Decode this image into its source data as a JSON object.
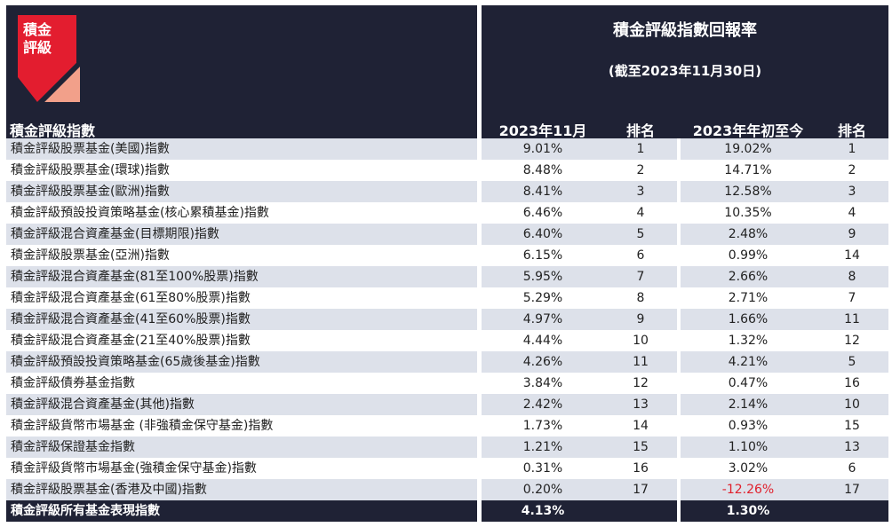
{
  "logo": {
    "text_line1": "積金",
    "text_line2": "評級",
    "colors": {
      "red": "#e31d2f",
      "salmon": "#f2a08a",
      "navy": "#1f2235"
    }
  },
  "header": {
    "title": "積金評級指數回報率",
    "subtitle": "(截至2023年11月30日)"
  },
  "columns": {
    "name": "積金評級指數",
    "month": "2023年11月",
    "rank1": "排名",
    "ytd": "2023年年初至今",
    "rank2": "排名"
  },
  "rows": [
    {
      "name": "積金評級股票基金(美國)指數",
      "month": "9.01%",
      "rank1": "1",
      "ytd": "19.02%",
      "rank2": "1"
    },
    {
      "name": "積金評級股票基金(環球)指數",
      "month": "8.48%",
      "rank1": "2",
      "ytd": "14.71%",
      "rank2": "2"
    },
    {
      "name": "積金評級股票基金(歐洲)指數",
      "month": "8.41%",
      "rank1": "3",
      "ytd": "12.58%",
      "rank2": "3"
    },
    {
      "name": "積金評級預設投資策略基金(核心累積基金)指數",
      "month": "6.46%",
      "rank1": "4",
      "ytd": "10.35%",
      "rank2": "4"
    },
    {
      "name": "積金評級混合資產基金(目標期限)指數",
      "month": "6.40%",
      "rank1": "5",
      "ytd": "2.48%",
      "rank2": "9"
    },
    {
      "name": "積金評級股票基金(亞洲)指數",
      "month": "6.15%",
      "rank1": "6",
      "ytd": "0.99%",
      "rank2": "14"
    },
    {
      "name": "積金評級混合資產基金(81至100%股票)指數",
      "month": "5.95%",
      "rank1": "7",
      "ytd": "2.66%",
      "rank2": "8"
    },
    {
      "name": "積金評級混合資產基金(61至80%股票)指數",
      "month": "5.29%",
      "rank1": "8",
      "ytd": "2.71%",
      "rank2": "7"
    },
    {
      "name": "積金評級混合資產基金(41至60%股票)指數",
      "month": "4.97%",
      "rank1": "9",
      "ytd": "1.66%",
      "rank2": "11"
    },
    {
      "name": "積金評級混合資產基金(21至40%股票)指數",
      "month": "4.44%",
      "rank1": "10",
      "ytd": "1.32%",
      "rank2": "12"
    },
    {
      "name": "積金評級預設投資策略基金(65歲後基金)指數",
      "month": "4.26%",
      "rank1": "11",
      "ytd": "4.21%",
      "rank2": "5"
    },
    {
      "name": "積金評級債券基金指數",
      "month": "3.84%",
      "rank1": "12",
      "ytd": "0.47%",
      "rank2": "16"
    },
    {
      "name": "積金評級混合資產基金(其他)指數",
      "month": "2.42%",
      "rank1": "13",
      "ytd": "2.14%",
      "rank2": "10"
    },
    {
      "name": "積金評級貨幣市場基金 (非強積金保守基金)指數",
      "month": "1.73%",
      "rank1": "14",
      "ytd": "0.93%",
      "rank2": "15"
    },
    {
      "name": "積金評級保證基金指數",
      "month": "1.21%",
      "rank1": "15",
      "ytd": "1.10%",
      "rank2": "13"
    },
    {
      "name": "積金評級貨幣市場基金(強積金保守基金)指數",
      "month": "0.31%",
      "rank1": "16",
      "ytd": "3.02%",
      "rank2": "6"
    },
    {
      "name": "積金評級股票基金(香港及中國)指數",
      "month": "0.20%",
      "rank1": "17",
      "ytd": "-12.26%",
      "rank2": "17"
    }
  ],
  "total": {
    "name": "積金評級所有基金表現指數",
    "month": "4.13%",
    "ytd": "1.30%"
  }
}
